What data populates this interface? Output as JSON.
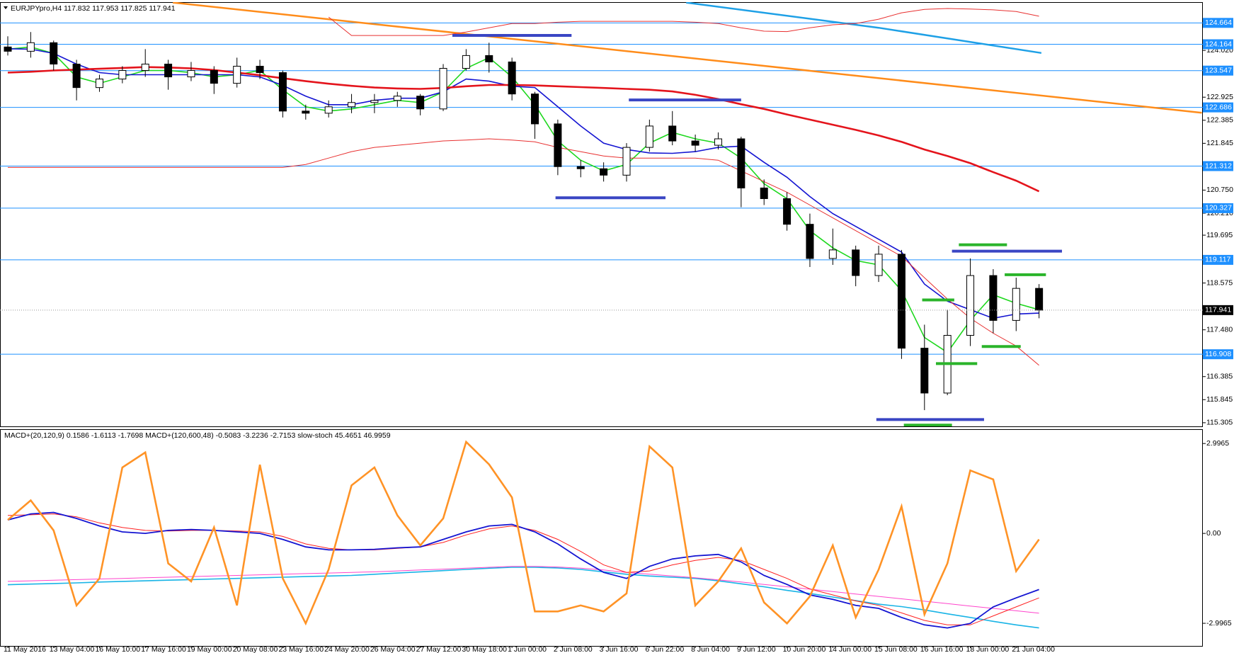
{
  "chart_data": [
    {
      "type": "candlestick",
      "title": "EURJPYpro,H4  117.832 117.953 117.825 117.941",
      "up_color": "#ffffff",
      "down_color": "#000000",
      "candles": {
        "open": [
          124.1,
          124.0,
          124.2,
          123.7,
          123.15,
          123.35,
          123.55,
          123.7,
          123.4,
          123.55,
          123.25,
          123.65,
          123.5,
          122.6,
          122.55,
          122.7,
          122.8,
          122.85,
          122.95,
          122.65,
          123.6,
          123.9,
          123.75,
          123.0,
          122.3,
          121.3,
          121.25,
          121.1,
          121.75,
          122.25,
          121.9,
          121.8,
          121.95,
          120.8,
          120.55,
          119.95,
          119.15,
          119.35,
          118.75,
          119.25,
          117.05,
          116.0,
          117.35,
          118.75,
          117.7,
          118.45
        ],
        "high": [
          124.35,
          124.45,
          124.25,
          123.8,
          123.45,
          123.65,
          124.05,
          123.8,
          123.75,
          123.65,
          123.85,
          123.8,
          123.55,
          122.75,
          122.85,
          123.0,
          123.0,
          123.05,
          123.0,
          123.7,
          124.05,
          124.2,
          123.85,
          123.05,
          122.4,
          121.45,
          121.4,
          121.85,
          122.4,
          122.6,
          122.05,
          122.1,
          122.0,
          121.0,
          120.7,
          120.2,
          119.85,
          119.45,
          119.45,
          119.35,
          117.6,
          117.95,
          119.15,
          118.9,
          118.7,
          118.55
        ],
        "low": [
          123.9,
          123.85,
          123.55,
          122.85,
          123.05,
          123.25,
          123.4,
          123.1,
          123.3,
          123.0,
          123.15,
          123.35,
          122.45,
          122.4,
          122.45,
          122.55,
          122.55,
          122.7,
          122.5,
          122.6,
          123.55,
          123.5,
          122.85,
          121.95,
          121.1,
          121.05,
          120.95,
          120.95,
          121.65,
          121.8,
          121.65,
          121.7,
          120.35,
          120.4,
          119.8,
          118.95,
          119.0,
          118.5,
          118.6,
          116.8,
          115.6,
          115.95,
          117.1,
          117.4,
          117.45,
          117.75
        ],
        "close": [
          124.0,
          124.2,
          123.7,
          123.15,
          123.35,
          123.55,
          123.7,
          123.4,
          123.55,
          123.25,
          123.65,
          123.5,
          122.6,
          122.55,
          122.7,
          122.8,
          122.85,
          122.95,
          122.65,
          123.6,
          123.9,
          123.75,
          123.0,
          122.3,
          121.3,
          121.25,
          121.1,
          121.75,
          122.25,
          121.9,
          121.8,
          121.95,
          120.8,
          120.55,
          119.95,
          119.15,
          119.35,
          118.75,
          119.25,
          117.05,
          116.0,
          117.35,
          118.75,
          117.7,
          118.45,
          117.941
        ]
      },
      "series": [
        {
          "color": "#1ed81e",
          "values": [
            124.05,
            124.1,
            123.95,
            123.4,
            123.25,
            123.4,
            123.55,
            123.55,
            123.5,
            123.4,
            123.45,
            123.55,
            123.1,
            122.7,
            122.6,
            122.65,
            122.75,
            122.85,
            122.8,
            123.05,
            123.6,
            123.85,
            123.4,
            122.75,
            121.9,
            121.45,
            121.2,
            121.35,
            121.85,
            122.1,
            121.95,
            121.85,
            121.5,
            120.9,
            120.55,
            119.8,
            119.4,
            119.1,
            119.0,
            118.4,
            117.3,
            116.95,
            117.7,
            118.3,
            118.1,
            117.95
          ]
        },
        {
          "color": "#1414d2",
          "values": [
            124.06,
            124.05,
            123.95,
            123.7,
            123.5,
            123.45,
            123.45,
            123.45,
            123.45,
            123.45,
            123.45,
            123.4,
            123.2,
            122.95,
            122.75,
            122.75,
            122.85,
            122.9,
            122.9,
            123.05,
            123.35,
            123.3,
            123.18,
            123.15,
            122.7,
            122.25,
            121.85,
            121.7,
            121.62,
            121.61,
            121.65,
            121.75,
            121.78,
            121.4,
            121.05,
            120.6,
            120.2,
            119.9,
            119.6,
            119.3,
            118.55,
            118.15,
            117.95,
            117.75,
            117.85,
            117.87
          ]
        },
        {
          "color": "#e4141c",
          "values": [
            123.5,
            123.52,
            123.55,
            123.57,
            123.59,
            123.61,
            123.63,
            123.62,
            123.6,
            123.56,
            123.5,
            123.44,
            123.37,
            123.3,
            123.24,
            123.19,
            123.15,
            123.13,
            123.12,
            123.14,
            123.18,
            123.21,
            123.21,
            123.2,
            123.18,
            123.16,
            123.14,
            123.12,
            123.1,
            123.06,
            122.98,
            122.88,
            122.76,
            122.65,
            122.52,
            122.4,
            122.28,
            122.16,
            122.03,
            121.88,
            121.7,
            121.55,
            121.38,
            121.17,
            120.97,
            120.72
          ]
        },
        {
          "color": "#e83030",
          "values": [
            null,
            null,
            null,
            null,
            null,
            null,
            null,
            null,
            null,
            null,
            null,
            null,
            null,
            null,
            124.8,
            124.37,
            124.37,
            124.37,
            124.37,
            124.37,
            124.45,
            124.55,
            124.65,
            124.65,
            124.68,
            124.7,
            124.7,
            124.7,
            124.7,
            124.7,
            124.68,
            124.65,
            124.55,
            124.47,
            124.46,
            124.55,
            124.62,
            124.65,
            124.75,
            124.9,
            124.98,
            125.0,
            124.99,
            124.97,
            124.93,
            124.82
          ]
        },
        {
          "color": "#e83030",
          "values": [
            121.28,
            121.28,
            121.28,
            121.28,
            121.28,
            121.28,
            121.28,
            121.28,
            121.28,
            121.28,
            121.28,
            121.28,
            121.28,
            121.35,
            121.5,
            121.65,
            121.75,
            121.8,
            121.85,
            121.9,
            121.92,
            121.95,
            121.92,
            121.88,
            121.75,
            121.65,
            121.55,
            121.5,
            121.5,
            121.5,
            121.5,
            121.45,
            121.2,
            120.95,
            120.7,
            120.4,
            120.1,
            119.8,
            119.5,
            119.2,
            118.7,
            118.2,
            117.75,
            117.4,
            117.1,
            116.65
          ]
        }
      ],
      "trendlines": [
        {
          "color": "#ff8c1a",
          "x": [
            7.2,
            52.1
          ],
          "values": [
            125.14,
            122.56
          ]
        },
        {
          "color": "#1ea0e6",
          "x": [
            29.6,
            38,
            45.1
          ],
          "values": [
            125.14,
            124.55,
            123.96
          ]
        }
      ],
      "segments": [
        {
          "color": "#3a46c4",
          "from": 19.4,
          "to": 24.6,
          "value": 124.37
        },
        {
          "color": "#3a46c4",
          "from": 27.1,
          "to": 32.0,
          "value": 122.86
        },
        {
          "color": "#3a46c4",
          "from": 23.9,
          "to": 28.7,
          "value": 120.57
        },
        {
          "color": "#3a46c4",
          "from": 41.2,
          "to": 46.0,
          "value": 119.32
        },
        {
          "color": "#3a46c4",
          "from": 37.9,
          "to": 42.6,
          "value": 115.38
        },
        {
          "color": "#2ab42a",
          "from": 41.5,
          "to": 43.6,
          "value": 119.47
        },
        {
          "color": "#2ab42a",
          "from": 43.5,
          "to": 45.3,
          "value": 118.77
        },
        {
          "color": "#2ab42a",
          "from": 39.9,
          "to": 41.3,
          "value": 118.18
        },
        {
          "color": "#2ab42a",
          "from": 42.5,
          "to": 44.2,
          "value": 117.09
        },
        {
          "color": "#2ab42a",
          "from": 40.5,
          "to": 42.3,
          "value": 116.69
        },
        {
          "color": "#2ab42a",
          "from": 39.1,
          "to": 41.2,
          "value": 115.25
        }
      ],
      "levels": [
        124.664,
        124.164,
        123.547,
        122.686,
        121.312,
        120.327,
        119.117,
        116.908
      ],
      "level_color": "#1e90ff",
      "last": 117.941,
      "ylim": [
        115.22,
        125.15
      ],
      "yticks": [
        {
          "value": 124.02,
          "label": "124.020"
        },
        122.925,
        122.385,
        121.845,
        {
          "value": 120.75,
          "label": "120.750"
        },
        {
          "value": 120.21,
          "label": "120.210"
        },
        119.695,
        118.575,
        {
          "value": 117.48,
          "label": "117.480"
        },
        116.385,
        115.845,
        115.305
      ]
    },
    {
      "type": "line",
      "title": "MACD+(20,120,9) 0.1586 -1.6113 -1.7698  MACD+(120,600,48) -0.5083 -3.2236 -2.7153  slow-stoch 45.4651 46.9959",
      "categories": [
        "11 May 2016",
        null,
        "13 May 04:00",
        null,
        "16 May 10:00",
        null,
        "17 May 16:00",
        null,
        "19 May 00:00",
        null,
        "20 May 08:00",
        null,
        "23 May 16:00",
        null,
        "24 May 20:00",
        null,
        "26 May 04:00",
        null,
        "27 May 12:00",
        null,
        "30 May 18:00",
        null,
        "1 Jun 00:00",
        null,
        "2 Jun 08:00",
        null,
        "3 Jun 16:00",
        null,
        "6 Jun 22:00",
        null,
        "8 Jun 04:00",
        null,
        "9 Jun 12:00",
        null,
        "10 Jun 20:00",
        null,
        "14 Jun 00:00",
        null,
        "15 Jun 08:00",
        null,
        "16 Jun 16:00",
        null,
        "18 Jun 00:00",
        null,
        "21 Jun 04:00",
        null
      ],
      "series": [
        {
          "color": "#19b4e6",
          "values": [
            -1.71,
            -1.69,
            -1.67,
            -1.65,
            -1.62,
            -1.6,
            -1.58,
            -1.56,
            -1.54,
            -1.52,
            -1.5,
            -1.48,
            -1.46,
            -1.44,
            -1.42,
            -1.4,
            -1.36,
            -1.32,
            -1.28,
            -1.24,
            -1.2,
            -1.16,
            -1.13,
            -1.13,
            -1.15,
            -1.2,
            -1.28,
            -1.36,
            -1.42,
            -1.46,
            -1.5,
            -1.58,
            -1.68,
            -1.78,
            -1.9,
            -2.0,
            -2.12,
            -2.24,
            -2.36,
            -2.44,
            -2.55,
            -2.68,
            -2.8,
            -2.93,
            -3.05,
            -3.15
          ]
        },
        {
          "color": "#ff44cc",
          "values": [
            -1.6,
            -1.58,
            -1.56,
            -1.54,
            -1.52,
            -1.5,
            -1.48,
            -1.46,
            -1.44,
            -1.42,
            -1.4,
            -1.38,
            -1.36,
            -1.34,
            -1.32,
            -1.3,
            -1.28,
            -1.25,
            -1.22,
            -1.19,
            -1.16,
            -1.13,
            -1.1,
            -1.1,
            -1.12,
            -1.16,
            -1.22,
            -1.3,
            -1.36,
            -1.42,
            -1.48,
            -1.55,
            -1.62,
            -1.7,
            -1.78,
            -1.86,
            -1.94,
            -2.02,
            -2.1,
            -2.18,
            -2.26,
            -2.34,
            -2.42,
            -2.5,
            -2.58,
            -2.66
          ]
        },
        {
          "color": "#ff2020",
          "values": [
            0.6,
            0.62,
            0.65,
            0.55,
            0.35,
            0.2,
            0.1,
            0.08,
            0.1,
            0.1,
            0.08,
            0.05,
            -0.1,
            -0.35,
            -0.5,
            -0.55,
            -0.55,
            -0.5,
            -0.45,
            -0.3,
            -0.05,
            0.15,
            0.25,
            0.1,
            -0.2,
            -0.6,
            -1.05,
            -1.3,
            -1.25,
            -1.05,
            -0.9,
            -0.8,
            -0.9,
            -1.2,
            -1.5,
            -1.85,
            -2.05,
            -2.25,
            -2.4,
            -2.65,
            -2.9,
            -3.05,
            -3.05,
            -2.75,
            -2.45,
            -2.15
          ]
        },
        {
          "color": "#1414d2",
          "values": [
            0.45,
            0.65,
            0.7,
            0.5,
            0.25,
            0.05,
            0.0,
            0.1,
            0.13,
            0.1,
            0.05,
            0.0,
            -0.2,
            -0.45,
            -0.55,
            -0.55,
            -0.53,
            -0.48,
            -0.45,
            -0.2,
            0.05,
            0.25,
            0.3,
            0.05,
            -0.35,
            -0.85,
            -1.3,
            -1.5,
            -1.1,
            -0.85,
            -0.75,
            -0.7,
            -0.95,
            -1.4,
            -1.7,
            -2.05,
            -2.2,
            -2.4,
            -2.5,
            -2.8,
            -3.05,
            -3.15,
            -3.0,
            -2.45,
            -2.15,
            -1.87
          ]
        },
        {
          "color": "#ff9326",
          "values": [
            0.45,
            1.1,
            0.1,
            -2.4,
            -1.5,
            2.2,
            2.7,
            -1.0,
            -1.6,
            0.2,
            -2.4,
            2.29,
            -1.5,
            -3.0,
            -1.2,
            1.6,
            2.2,
            0.6,
            -0.4,
            0.5,
            3.05,
            2.3,
            1.2,
            -2.6,
            -2.6,
            -2.4,
            -2.6,
            -2.0,
            2.9,
            2.2,
            -2.4,
            -1.6,
            -0.5,
            -2.3,
            -3.0,
            -2.1,
            -0.4,
            -2.8,
            -1.2,
            0.9,
            -2.7,
            -1.0,
            2.1,
            1.8,
            -1.26,
            -0.2
          ]
        }
      ],
      "ylim": [
        -3.75,
        3.45
      ],
      "yticks": [
        2.9965,
        {
          "value": 0,
          "label": "0.00"
        },
        -2.9965
      ]
    }
  ]
}
